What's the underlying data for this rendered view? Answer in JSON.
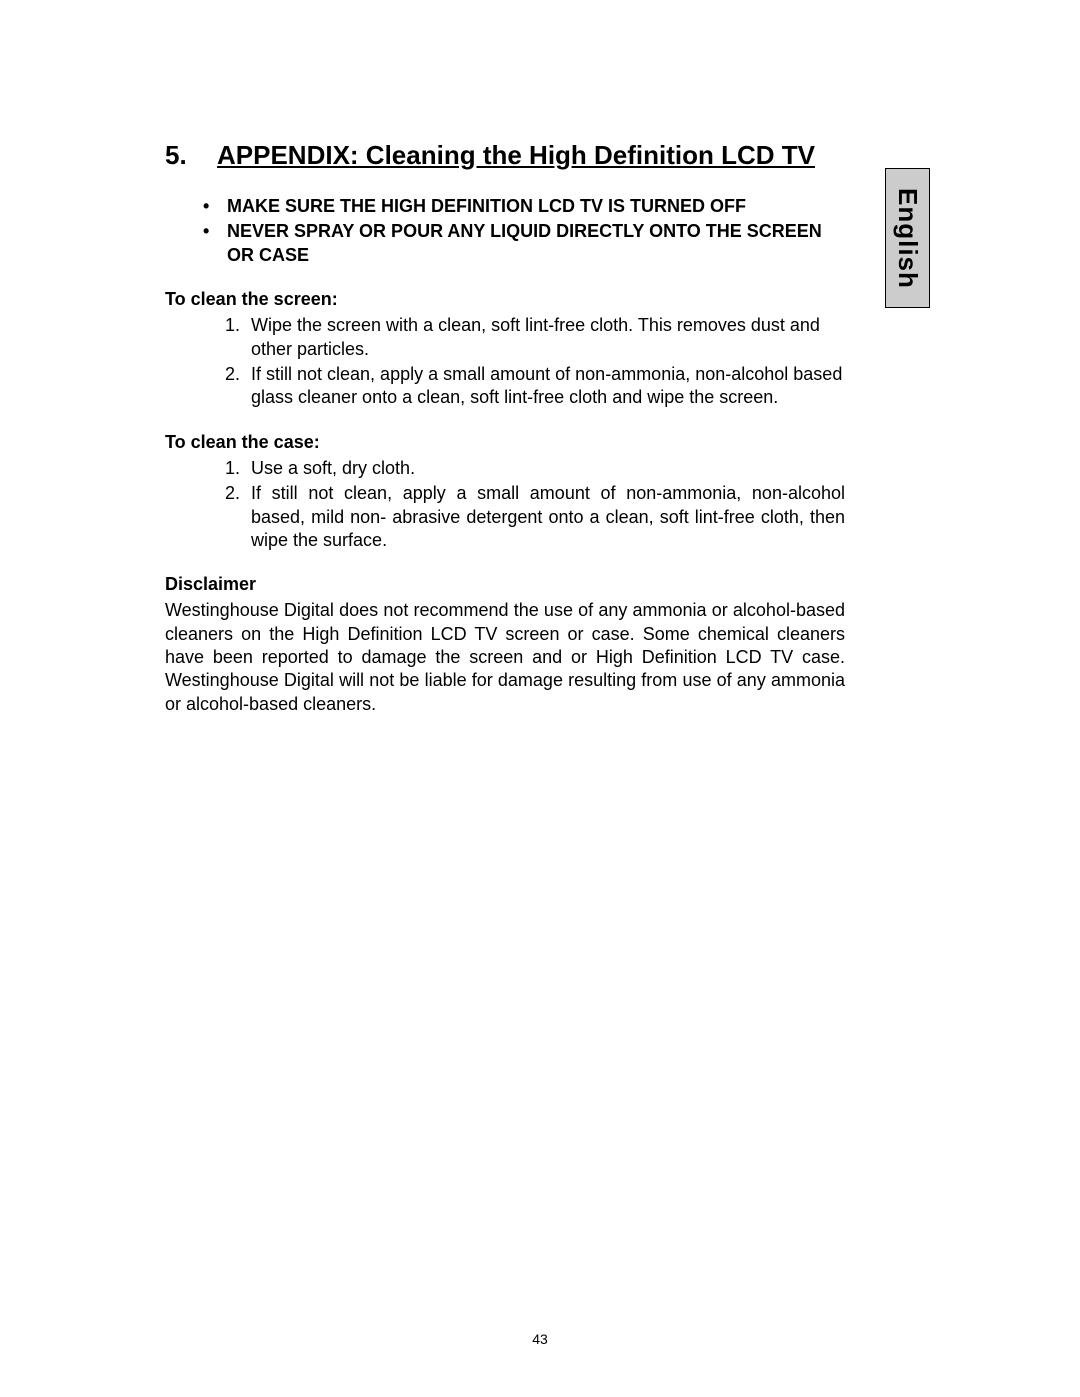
{
  "language_tab": "English",
  "title": {
    "number": "5.",
    "text": "APPENDIX: Cleaning the High Definition LCD TV"
  },
  "warnings": [
    "MAKE SURE THE HIGH DEFINITION LCD TV IS TURNED OFF",
    "NEVER SPRAY OR POUR ANY LIQUID DIRECTLY ONTO THE SCREEN OR CASE"
  ],
  "screen": {
    "heading": "To clean the screen:",
    "steps": [
      "Wipe the screen with a clean, soft lint-free cloth. This removes dust and other particles.",
      "If still not clean, apply a small amount of non-ammonia, non-alcohol based glass cleaner onto a clean, soft lint-free cloth and wipe the screen."
    ]
  },
  "case": {
    "heading": "To clean the case:",
    "steps": [
      "Use a soft, dry cloth.",
      "If still not clean, apply a small amount of non-ammonia, non-alcohol based, mild non- abrasive detergent onto a clean, soft lint-free cloth, then wipe the surface."
    ]
  },
  "disclaimer": {
    "heading": "Disclaimer",
    "body": "Westinghouse Digital does not recommend the use of any ammonia or alcohol-based cleaners on the High Definition LCD TV screen or case. Some chemical cleaners have been reported to damage the screen and or High Definition LCD TV case. Westinghouse Digital will not be liable for damage resulting from use of any ammonia or alcohol-based cleaners."
  },
  "page_number": "43",
  "colors": {
    "tab_bg": "#cccccc",
    "tab_border": "#000000",
    "text": "#000000",
    "page_bg": "#ffffff"
  }
}
